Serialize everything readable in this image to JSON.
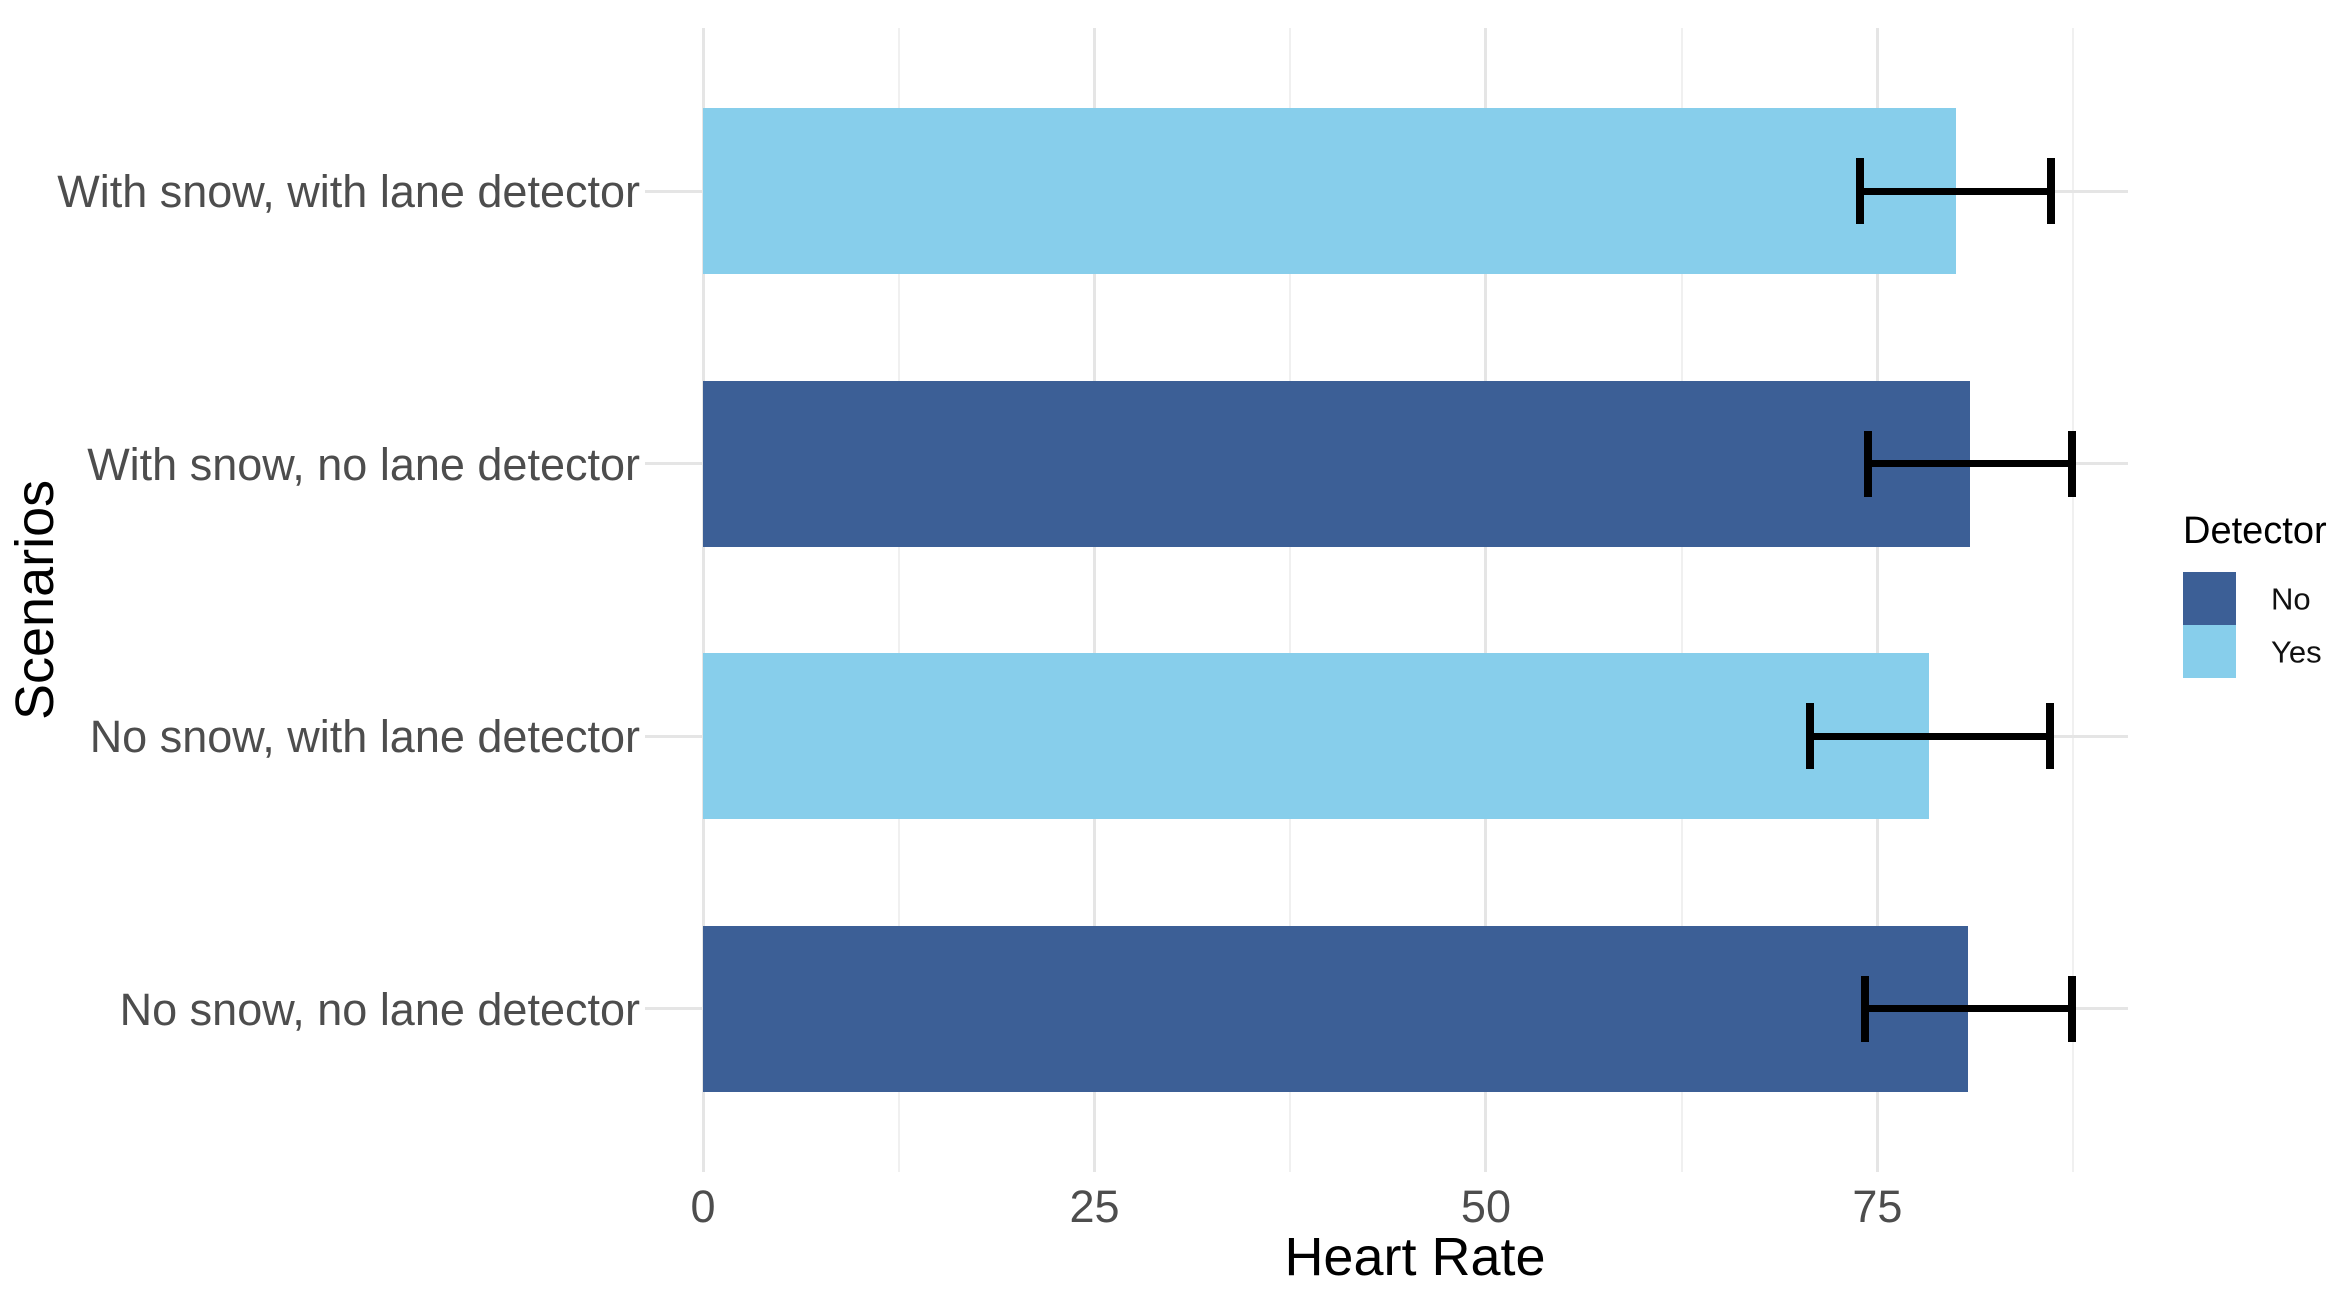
{
  "chart_data": {
    "type": "bar",
    "orientation": "horizontal",
    "title": "",
    "xlabel": "Heart Rate",
    "ylabel": "Scenarios",
    "xlim": [
      0,
      91
    ],
    "grid": "vertical major+minor gridlines, horizontal major gridline per category, no panel border",
    "x_ticks": [
      {
        "value": 0,
        "label": "0"
      },
      {
        "value": 25,
        "label": "25"
      },
      {
        "value": 50,
        "label": "50"
      },
      {
        "value": 75,
        "label": "75"
      }
    ],
    "x_minor_gridlines": [
      12.5,
      37.5,
      62.5,
      87.5
    ],
    "legend": {
      "title": "Detector",
      "position": "right",
      "entries": [
        {
          "label": "No",
          "color": "#3C5F96"
        },
        {
          "label": "Yes",
          "color": "#87CEEB"
        }
      ]
    },
    "categories": [
      {
        "label": "With snow, with lane detector",
        "detector": "Yes",
        "color": "#87CEEB",
        "value": 80.0,
        "error_low": 73.9,
        "error_high": 86.1
      },
      {
        "label": "With snow, no lane detector",
        "detector": "No",
        "color": "#3C5F96",
        "value": 80.9,
        "error_low": 74.4,
        "error_high": 87.4
      },
      {
        "label": "No snow, with lane detector",
        "detector": "Yes",
        "color": "#87CEEB",
        "value": 78.3,
        "error_low": 70.7,
        "error_high": 86.0
      },
      {
        "label": "No snow, no lane detector",
        "detector": "No",
        "color": "#3C5F96",
        "value": 80.8,
        "error_low": 74.2,
        "error_high": 87.4
      }
    ],
    "colors": {
      "error_bar": "#000000",
      "gridline_major": "#E5E5E5",
      "gridline_minor": "#F0F0F0",
      "tick_label": "#4D4D4D",
      "axis_title": "#000000",
      "background": "#FFFFFF"
    }
  }
}
